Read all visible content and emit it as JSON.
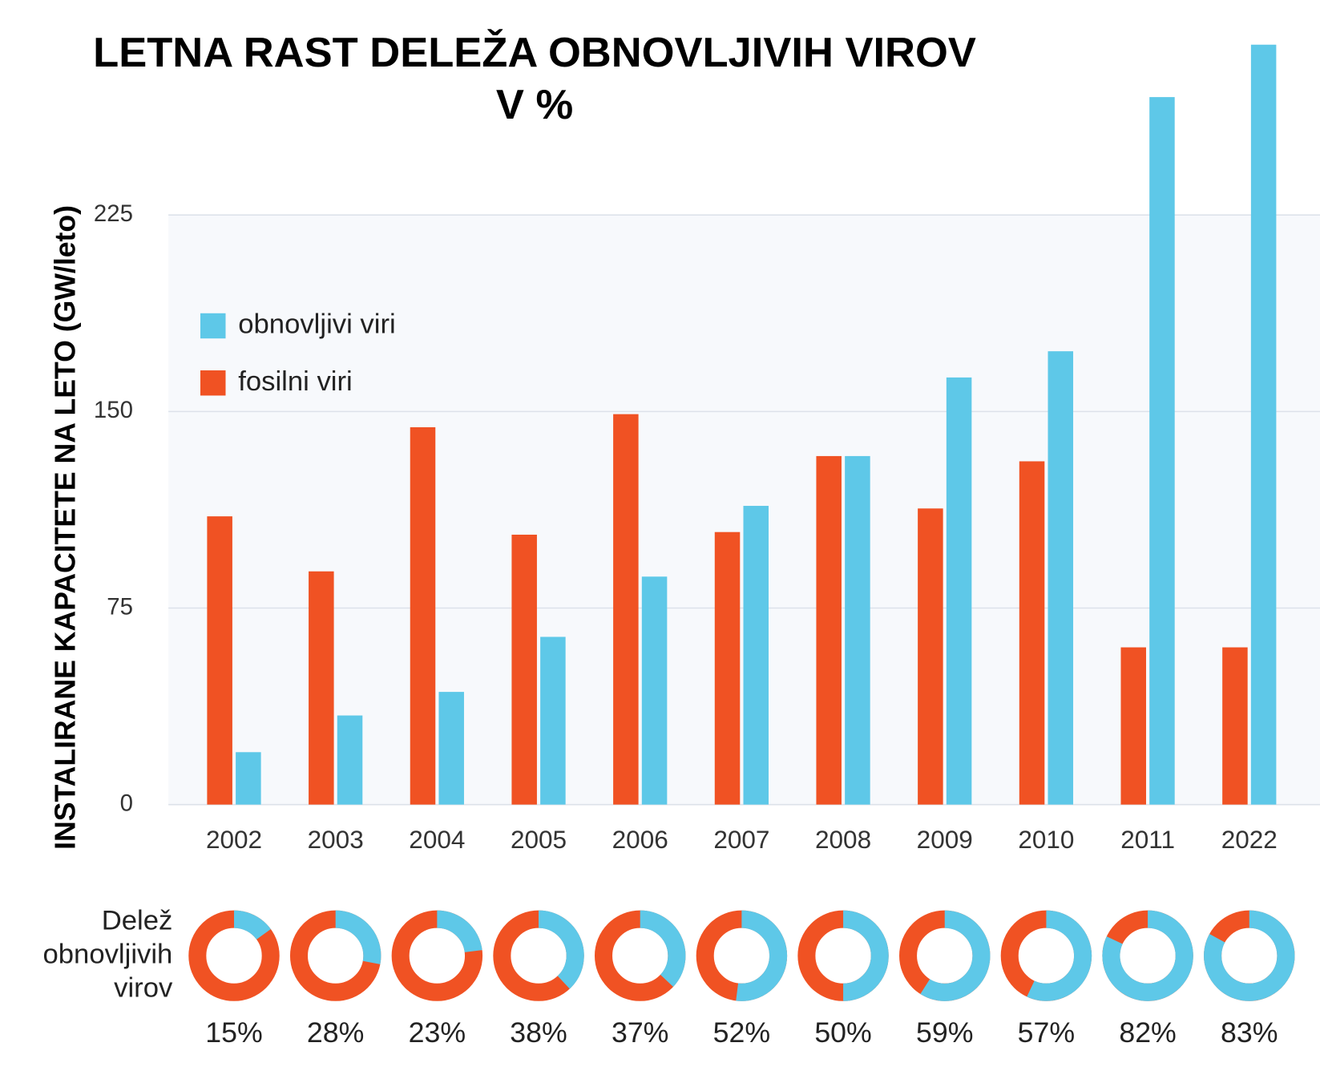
{
  "chart_data": [
    {
      "type": "bar",
      "title_lines": [
        "LETNA RAST DELEŽA OBNOVLJIVIH VIROV",
        "V %"
      ],
      "y_label": "INSTALIRANE KAPACITETE NA LETO (GW/leto)",
      "categories": [
        "2002",
        "2003",
        "2004",
        "2005",
        "2006",
        "2007",
        "2008",
        "2009",
        "2010",
        "2011",
        "2022"
      ],
      "series": [
        {
          "name": "fosilni viri",
          "color": "#f05223",
          "values": [
            110,
            89,
            144,
            103,
            149,
            104,
            133,
            113,
            131,
            60,
            60
          ]
        },
        {
          "name": "obnovljivi viri",
          "color": "#5ec8e8",
          "values": [
            20,
            34,
            43,
            64,
            87,
            114,
            133,
            163,
            173,
            270,
            290
          ]
        }
      ],
      "ylim": [
        0,
        290
      ],
      "yticks": [
        0,
        75,
        150,
        225
      ],
      "grid": true
    },
    {
      "type": "donut",
      "label_lines": [
        "Delež",
        "obnovljivih",
        "virov"
      ],
      "values": [
        15,
        28,
        23,
        38,
        37,
        52,
        50,
        59,
        57,
        82,
        83
      ],
      "value_labels": [
        "15%",
        "28%",
        "23%",
        "38%",
        "37%",
        "52%",
        "50%",
        "59%",
        "57%",
        "82%",
        "83%"
      ],
      "color": "#5ec8e8",
      "rest_color": "#f05223"
    }
  ]
}
